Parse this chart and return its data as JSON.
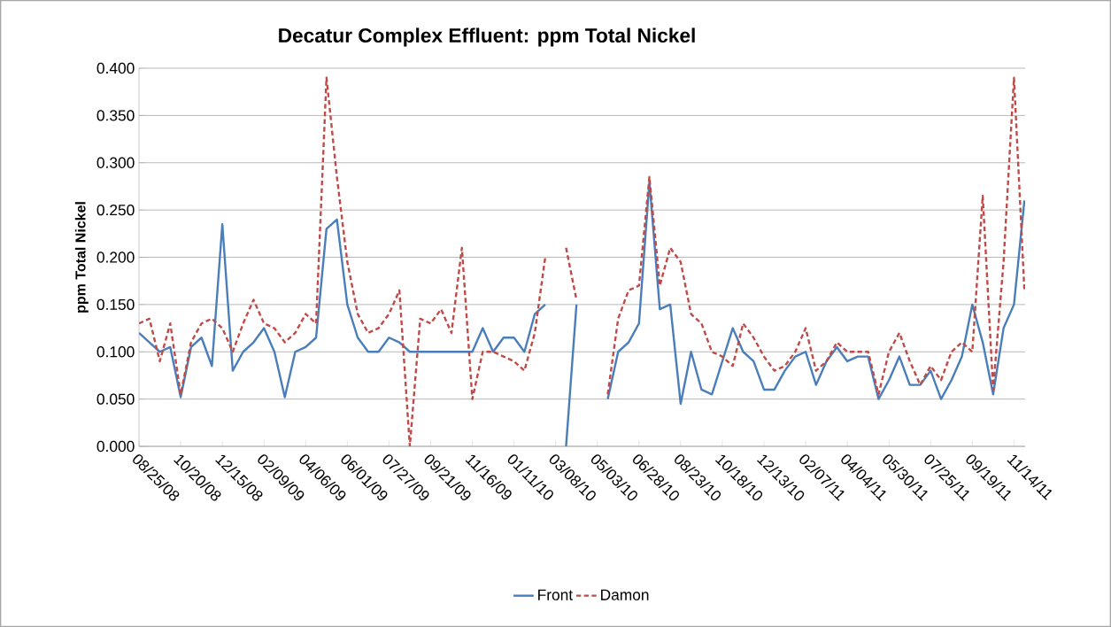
{
  "chart_data": {
    "type": "line",
    "title": "Decatur Complex Effluent:  ppm Total Nickel",
    "ylabel": "ppm Total Nickel",
    "x": [
      "2008-08-25",
      "2008-09-08",
      "2008-09-22",
      "2008-10-06",
      "2008-10-20",
      "2008-11-03",
      "2008-11-17",
      "2008-12-01",
      "2008-12-15",
      "2008-12-29",
      "2009-01-12",
      "2009-01-26",
      "2009-02-09",
      "2009-02-23",
      "2009-03-09",
      "2009-03-23",
      "2009-04-06",
      "2009-04-20",
      "2009-05-04",
      "2009-05-18",
      "2009-06-01",
      "2009-06-15",
      "2009-06-29",
      "2009-07-13",
      "2009-07-27",
      "2009-08-10",
      "2009-08-24",
      "2009-09-07",
      "2009-09-21",
      "2009-10-05",
      "2009-10-19",
      "2009-11-02",
      "2009-11-16",
      "2009-11-30",
      "2009-12-14",
      "2009-12-28",
      "2010-01-11",
      "2010-01-25",
      "2010-02-08",
      "2010-02-22",
      "2010-03-08",
      "2010-03-22",
      "2010-04-05",
      "2010-04-19",
      "2010-05-03",
      "2010-05-17",
      "2010-05-31",
      "2010-06-14",
      "2010-06-28",
      "2010-07-12",
      "2010-07-26",
      "2010-08-09",
      "2010-08-23",
      "2010-09-06",
      "2010-09-20",
      "2010-10-04",
      "2010-10-18",
      "2010-11-01",
      "2010-11-15",
      "2010-11-29",
      "2010-12-13",
      "2010-12-27",
      "2011-01-10",
      "2011-01-24",
      "2011-02-07",
      "2011-02-21",
      "2011-03-07",
      "2011-03-21",
      "2011-04-04",
      "2011-04-18",
      "2011-05-02",
      "2011-05-16",
      "2011-05-30",
      "2011-06-13",
      "2011-06-27",
      "2011-07-11",
      "2011-07-25",
      "2011-08-08",
      "2011-08-22",
      "2011-09-05",
      "2011-09-19",
      "2011-10-03",
      "2011-10-17",
      "2011-10-31",
      "2011-11-14",
      "2011-11-28"
    ],
    "series": [
      {
        "name": "Front",
        "color": "#4a7ebb",
        "line_style": "solid",
        "values": [
          0.12,
          0.11,
          0.1,
          0.105,
          0.052,
          0.105,
          0.115,
          0.085,
          0.235,
          0.08,
          0.1,
          0.11,
          0.125,
          0.1,
          0.052,
          0.1,
          0.105,
          0.115,
          0.23,
          0.24,
          0.15,
          0.115,
          0.1,
          0.1,
          0.115,
          0.11,
          0.1,
          0.1,
          0.1,
          0.1,
          0.1,
          0.1,
          0.1,
          0.125,
          0.1,
          0.115,
          0.115,
          0.1,
          0.14,
          0.15,
          null,
          0.0,
          0.15,
          null,
          null,
          0.05,
          0.1,
          0.11,
          0.13,
          0.28,
          0.145,
          0.15,
          0.045,
          0.1,
          0.06,
          0.055,
          0.09,
          0.125,
          0.1,
          0.09,
          0.06,
          0.06,
          0.08,
          0.095,
          0.1,
          0.065,
          0.09,
          0.105,
          0.09,
          0.095,
          0.095,
          0.05,
          0.07,
          0.095,
          0.065,
          0.065,
          0.08,
          0.05,
          0.07,
          0.095,
          0.15,
          0.11,
          0.055,
          0.125,
          0.15,
          0.26
        ]
      },
      {
        "name": "Damon",
        "color": "#be4b48",
        "line_style": "dashed",
        "values": [
          0.13,
          0.135,
          0.09,
          0.13,
          0.055,
          0.11,
          0.13,
          0.135,
          0.125,
          0.1,
          0.13,
          0.155,
          0.13,
          0.125,
          0.11,
          0.12,
          0.14,
          0.13,
          0.39,
          0.285,
          0.195,
          0.14,
          0.12,
          0.125,
          0.14,
          0.165,
          0.0,
          0.135,
          0.13,
          0.145,
          0.12,
          0.21,
          0.05,
          0.1,
          0.1,
          0.095,
          0.09,
          0.08,
          0.12,
          0.2,
          null,
          0.21,
          0.155,
          null,
          null,
          0.055,
          0.135,
          0.165,
          0.17,
          0.285,
          0.17,
          0.21,
          0.195,
          0.14,
          0.13,
          0.1,
          0.095,
          0.085,
          0.13,
          0.115,
          0.095,
          0.08,
          0.085,
          0.1,
          0.125,
          0.08,
          0.09,
          0.11,
          0.1,
          0.1,
          0.1,
          0.055,
          0.1,
          0.12,
          0.09,
          0.065,
          0.085,
          0.07,
          0.1,
          0.11,
          0.1,
          0.265,
          0.06,
          0.195,
          0.39,
          0.165
        ]
      }
    ],
    "xlim": [
      "2008-08-25",
      "2011-11-29"
    ],
    "xticks": [
      {
        "value": "2008-08-25",
        "label": "08/25/08"
      },
      {
        "value": "2008-10-20",
        "label": "10/20/08"
      },
      {
        "value": "2008-12-15",
        "label": "12/15/08"
      },
      {
        "value": "2009-02-09",
        "label": "02/09/09"
      },
      {
        "value": "2009-04-06",
        "label": "04/06/09"
      },
      {
        "value": "2009-06-01",
        "label": "06/01/09"
      },
      {
        "value": "2009-07-27",
        "label": "07/27/09"
      },
      {
        "value": "2009-09-21",
        "label": "09/21/09"
      },
      {
        "value": "2009-11-16",
        "label": "11/16/09"
      },
      {
        "value": "2010-01-11",
        "label": "01/11/10"
      },
      {
        "value": "2010-03-08",
        "label": "03/08/10"
      },
      {
        "value": "2010-05-03",
        "label": "05/03/10"
      },
      {
        "value": "2010-06-28",
        "label": "06/28/10"
      },
      {
        "value": "2010-08-23",
        "label": "08/23/10"
      },
      {
        "value": "2010-10-18",
        "label": "10/18/10"
      },
      {
        "value": "2010-12-13",
        "label": "12/13/10"
      },
      {
        "value": "2011-02-07",
        "label": "02/07/11"
      },
      {
        "value": "2011-04-04",
        "label": "04/04/11"
      },
      {
        "value": "2011-05-30",
        "label": "05/30/11"
      },
      {
        "value": "2011-07-25",
        "label": "07/25/11"
      },
      {
        "value": "2011-09-19",
        "label": "09/19/11"
      },
      {
        "value": "2011-11-14",
        "label": "11/14/11"
      }
    ],
    "ylim": [
      0,
      0.4
    ],
    "yticks": [
      {
        "value": 0,
        "label": "0.000"
      },
      {
        "value": 0.05,
        "label": "0.050"
      },
      {
        "value": 0.1,
        "label": "0.100"
      },
      {
        "value": 0.15,
        "label": "0.150"
      },
      {
        "value": 0.2,
        "label": "0.200"
      },
      {
        "value": 0.25,
        "label": "0.250"
      },
      {
        "value": 0.3,
        "label": "0.300"
      },
      {
        "value": 0.35,
        "label": "0.350"
      },
      {
        "value": 0.4,
        "label": "0.400"
      }
    ],
    "grid": "y",
    "legend": "bottom",
    "marker": "none"
  }
}
